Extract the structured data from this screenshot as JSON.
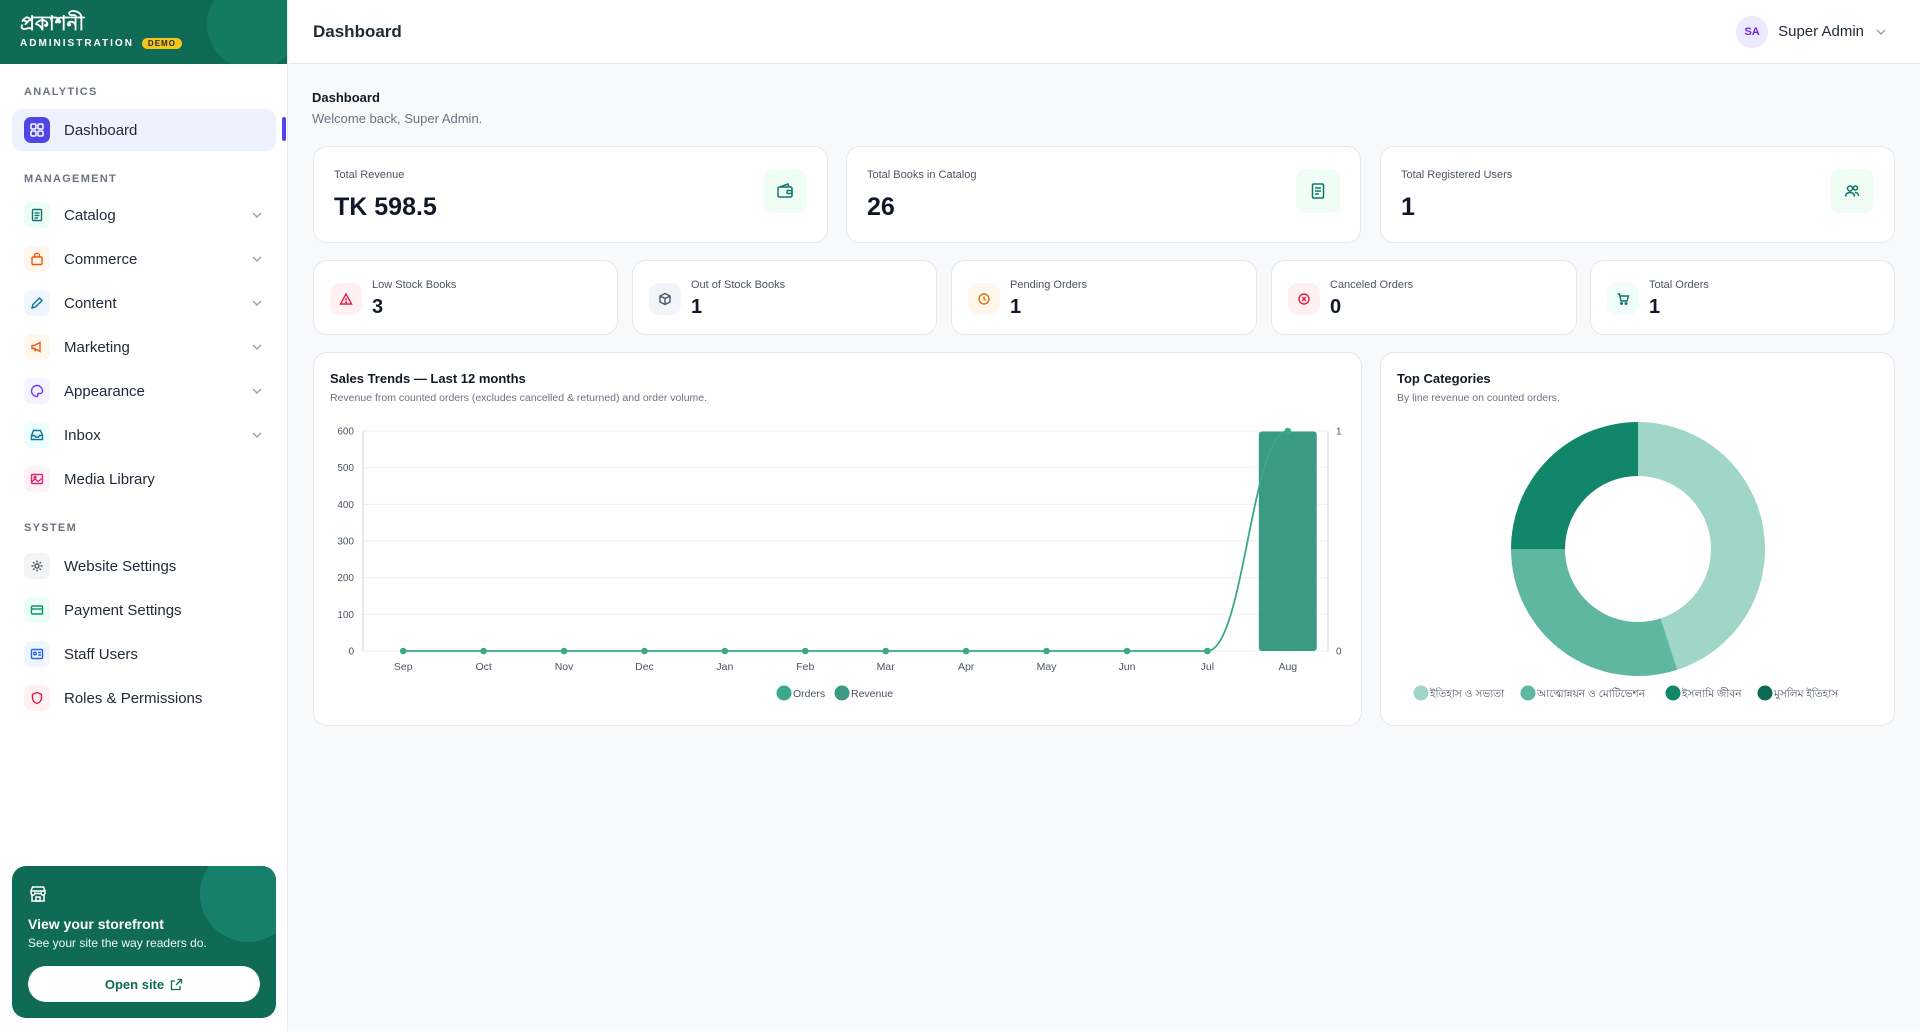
{
  "brand": {
    "name": "প্রকাশনী",
    "sub": "ADMINISTRATION",
    "badge": "DEMO"
  },
  "sidebar": {
    "sections": {
      "analytics": "ANALYTICS",
      "management": "MANAGEMENT",
      "system": "SYSTEM"
    },
    "items": [
      {
        "label": "Dashboard",
        "icon": "grid-icon"
      },
      {
        "label": "Catalog",
        "icon": "book-icon"
      },
      {
        "label": "Commerce",
        "icon": "bag-icon"
      },
      {
        "label": "Content",
        "icon": "pen-icon"
      },
      {
        "label": "Marketing",
        "icon": "megaphone-icon"
      },
      {
        "label": "Appearance",
        "icon": "palette-icon"
      },
      {
        "label": "Inbox",
        "icon": "inbox-icon"
      },
      {
        "label": "Media Library",
        "icon": "image-icon"
      },
      {
        "label": "Website Settings",
        "icon": "gear-icon"
      },
      {
        "label": "Payment Settings",
        "icon": "card-icon"
      },
      {
        "label": "Staff Users",
        "icon": "id-card-icon"
      },
      {
        "label": "Roles & Permissions",
        "icon": "shield-icon"
      }
    ],
    "storefront": {
      "title": "View your storefront",
      "subtitle": "See your site the way readers do.",
      "button": "Open site"
    }
  },
  "header": {
    "title": "Dashboard",
    "user_initials": "SA",
    "user_name": "Super Admin"
  },
  "page": {
    "heading": "Dashboard",
    "welcome": "Welcome back, Super Admin."
  },
  "stats_top": [
    {
      "label": "Total Revenue",
      "value": "TK 598.5",
      "icon": "wallet-icon"
    },
    {
      "label": "Total Books in Catalog",
      "value": "26",
      "icon": "book-icon"
    },
    {
      "label": "Total Registered Users",
      "value": "1",
      "icon": "users-icon"
    }
  ],
  "stats_small": [
    {
      "label": "Low Stock Books",
      "value": "3",
      "icon": "warning-icon",
      "color": "#e11d48",
      "bg": "#fff1f2"
    },
    {
      "label": "Out of Stock Books",
      "value": "1",
      "icon": "box-icon",
      "color": "#475569",
      "bg": "#f1f5f9"
    },
    {
      "label": "Pending Orders",
      "value": "1",
      "icon": "clock-icon",
      "color": "#d97706",
      "bg": "#fff7ed"
    },
    {
      "label": "Canceled Orders",
      "value": "0",
      "icon": "x-circle-icon",
      "color": "#e11d48",
      "bg": "#fff1f2"
    },
    {
      "label": "Total Orders",
      "value": "1",
      "icon": "cart-icon",
      "color": "#0f766e",
      "bg": "#f0fdfa"
    }
  ],
  "sales": {
    "title": "Sales Trends — Last 12 months",
    "subtitle": "Revenue from counted orders (excludes cancelled & returned) and order volume."
  },
  "categories": {
    "title": "Top Categories",
    "subtitle": "By line revenue on counted orders."
  },
  "chart_data": [
    {
      "type": "bar",
      "categories": [
        "Sep",
        "Oct",
        "Nov",
        "Dec",
        "Jan",
        "Feb",
        "Mar",
        "Apr",
        "May",
        "Jun",
        "Jul",
        "Aug"
      ],
      "series": [
        {
          "name": "Revenue",
          "type": "bar",
          "axis": "left",
          "values": [
            0,
            0,
            0,
            0,
            0,
            0,
            0,
            0,
            0,
            0,
            0,
            598.5
          ],
          "color": "#3a9a84"
        },
        {
          "name": "Orders",
          "type": "line",
          "axis": "right",
          "values": [
            0,
            0,
            0,
            0,
            0,
            0,
            0,
            0,
            0,
            0,
            0,
            1
          ],
          "color": "#3aa88a"
        }
      ],
      "y_left_ticks": [
        "0",
        "100",
        "200",
        "300",
        "400",
        "500",
        "600"
      ],
      "y_right_ticks": [
        "0",
        "1"
      ],
      "ylim_left": [
        0,
        600
      ],
      "ylim_right": [
        0,
        1
      ],
      "legend_order": [
        "Orders",
        "Revenue"
      ],
      "legend_position": "bottom",
      "grid": true
    },
    {
      "type": "pie",
      "donut": true,
      "labels": [
        "ইতিহাস ও সভ্যতা",
        "আত্মোন্নয়ন ও মোটিভেশন",
        "ইসলামি জীবন",
        "মুসলিম ইতিহাস"
      ],
      "values": [
        45,
        30,
        25,
        0
      ],
      "colors": [
        "#9fd6c7",
        "#5fb6a1",
        "#12866b",
        "#0b6b55"
      ],
      "legend_position": "bottom"
    }
  ]
}
